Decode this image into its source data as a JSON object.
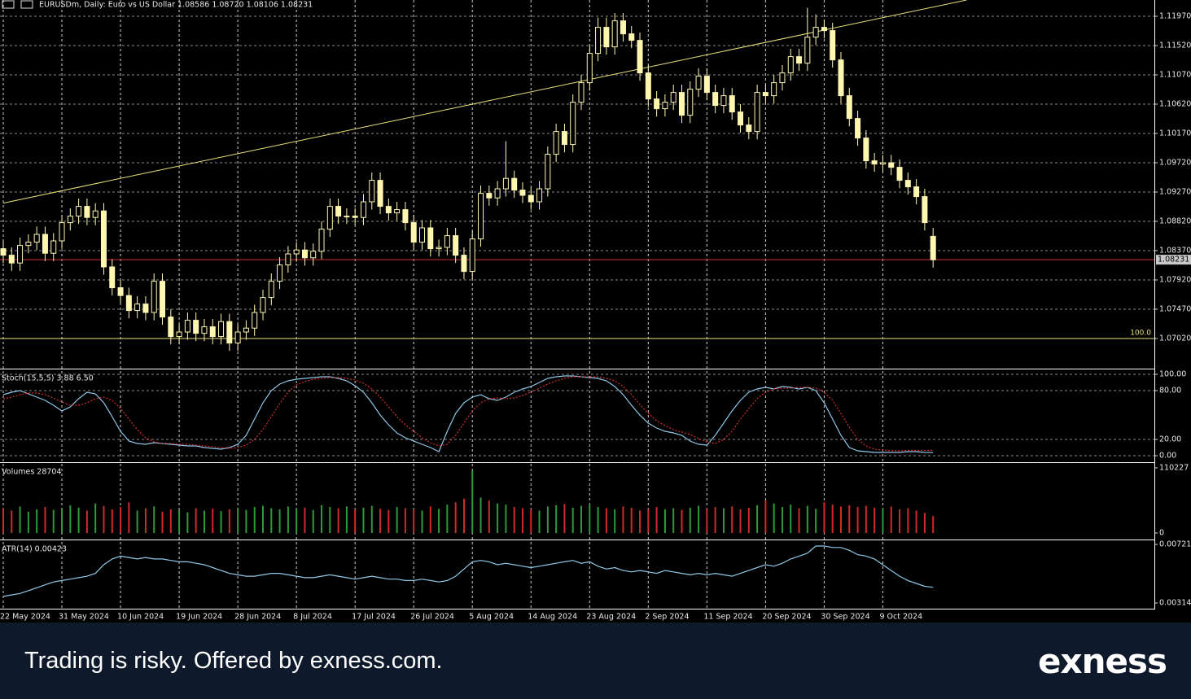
{
  "chart_data": [
    {
      "type": "candlestick",
      "title": "EURUSDm, Daily: Euro vs US Dollar 1.08586 1.08720 1.08106 1.08231",
      "categories": [
        "22 May 2024",
        null,
        null,
        null,
        null,
        null,
        null,
        "31 May 2024",
        null,
        null,
        null,
        null,
        null,
        null,
        "10 Jun 2024",
        null,
        null,
        null,
        null,
        null,
        null,
        "19 Jun 2024",
        null,
        null,
        null,
        null,
        null,
        null,
        "28 Jun 2024",
        null,
        null,
        null,
        null,
        null,
        null,
        "8 Jul 2024",
        null,
        null,
        null,
        null,
        null,
        null,
        "17 Jul 2024",
        null,
        null,
        null,
        null,
        null,
        null,
        "26 Jul 2024",
        null,
        null,
        null,
        null,
        null,
        null,
        "5 Aug 2024",
        null,
        null,
        null,
        null,
        null,
        null,
        "14 Aug 2024",
        null,
        null,
        null,
        null,
        null,
        null,
        "23 Aug 2024",
        null,
        null,
        null,
        null,
        null,
        null,
        "2 Sep 2024",
        null,
        null,
        null,
        null,
        null,
        null,
        "11 Sep 2024",
        null,
        null,
        null,
        null,
        null,
        null,
        "20 Sep 2024",
        null,
        null,
        null,
        null,
        null,
        null,
        "30 Sep 2024",
        null,
        null,
        null,
        null,
        null,
        null,
        "9 Oct 2024",
        null,
        null,
        null,
        null,
        null,
        null
      ],
      "open": [
        1.084,
        1.083,
        1.0818,
        1.0845,
        1.085,
        1.0862,
        1.0833,
        1.0852,
        1.088,
        1.089,
        1.0905,
        1.0888,
        1.0898,
        1.0812,
        1.078,
        1.0768,
        1.0745,
        1.0755,
        1.0742,
        1.079,
        1.0735,
        1.0705,
        1.0712,
        1.073,
        1.071,
        1.072,
        1.0705,
        1.0728,
        1.0695,
        1.0712,
        1.0718,
        1.0742,
        1.0765,
        1.079,
        1.0815,
        1.0832,
        1.0838,
        1.0826,
        1.0836,
        1.087,
        1.0905,
        1.089,
        1.089,
        1.0888,
        1.0912,
        1.0945,
        1.0905,
        1.0895,
        1.09,
        1.088,
        1.085,
        1.0872,
        1.084,
        1.0842,
        1.086,
        1.083,
        1.0805,
        1.0855,
        1.0925,
        1.0918,
        1.0932,
        1.0948,
        1.093,
        1.0922,
        1.0912,
        1.0932,
        1.0985,
        1.102,
        1.1,
        1.1065,
        1.1095,
        1.114,
        1.118,
        1.115,
        1.119,
        1.117,
        1.116,
        1.111,
        1.107,
        1.1055,
        1.1065,
        1.108,
        1.1045,
        1.1085,
        1.1105,
        1.108,
        1.106,
        1.1075,
        1.105,
        1.103,
        1.102,
        1.108,
        1.1075,
        1.1095,
        1.111,
        1.1135,
        1.1125,
        1.1165,
        1.118,
        1.1175,
        1.113,
        1.1075,
        1.104,
        1.101,
        1.0975,
        1.097,
        1.0972,
        1.0965,
        1.0945,
        1.0935,
        1.092,
        1.0859
      ],
      "high": [
        1.0852,
        1.0842,
        1.0857,
        1.0862,
        1.0874,
        1.0874,
        1.0864,
        1.0892,
        1.0902,
        1.0917,
        1.0917,
        1.091,
        1.091,
        1.0824,
        1.0792,
        1.078,
        1.0767,
        1.0767,
        1.0802,
        1.0802,
        1.0747,
        1.0724,
        1.0742,
        1.0742,
        1.0732,
        1.0732,
        1.074,
        1.074,
        1.0724,
        1.073,
        1.0754,
        1.0777,
        1.0802,
        1.0827,
        1.0844,
        1.085,
        1.085,
        1.0848,
        1.0882,
        1.0917,
        1.0917,
        1.0902,
        1.0902,
        1.0924,
        1.0957,
        1.0957,
        1.0917,
        1.0912,
        1.0912,
        1.0892,
        1.0884,
        1.0884,
        1.0854,
        1.0872,
        1.0872,
        1.0842,
        1.0867,
        1.0937,
        1.0937,
        1.0944,
        1.1005,
        1.096,
        1.0942,
        1.0934,
        1.0944,
        1.0997,
        1.1032,
        1.1032,
        1.1077,
        1.1107,
        1.1152,
        1.1195,
        1.1195,
        1.1202,
        1.1202,
        1.1182,
        1.1172,
        1.1122,
        1.1082,
        1.1077,
        1.1092,
        1.1092,
        1.1097,
        1.1117,
        1.1117,
        1.1092,
        1.1087,
        1.1087,
        1.1062,
        1.1042,
        1.1092,
        1.1092,
        1.1107,
        1.1122,
        1.1147,
        1.1147,
        1.121,
        1.12,
        1.1192,
        1.1187,
        1.1142,
        1.1087,
        1.1052,
        1.1022,
        1.0987,
        1.0984,
        1.0984,
        1.0977,
        1.0957,
        1.0947,
        1.0932,
        1.0872
      ],
      "low": [
        1.0818,
        1.0806,
        1.0806,
        1.0833,
        1.0838,
        1.0821,
        1.0821,
        1.084,
        1.0868,
        1.0878,
        1.0876,
        1.0876,
        1.08,
        1.0768,
        1.0756,
        1.0733,
        1.0733,
        1.073,
        1.073,
        1.0723,
        1.0693,
        1.0693,
        1.07,
        1.0698,
        1.0698,
        1.0693,
        1.0693,
        1.0683,
        1.0683,
        1.07,
        1.0706,
        1.073,
        1.0753,
        1.0778,
        1.0803,
        1.082,
        1.0814,
        1.0814,
        1.0824,
        1.0858,
        1.0878,
        1.0878,
        1.0876,
        1.0876,
        1.09,
        1.0893,
        1.0883,
        1.0883,
        1.0868,
        1.0838,
        1.0838,
        1.0828,
        1.0828,
        1.083,
        1.0818,
        1.0793,
        1.0793,
        1.0843,
        1.0906,
        1.0906,
        1.092,
        1.0918,
        1.091,
        1.09,
        1.09,
        1.092,
        1.0973,
        1.0988,
        1.0988,
        1.1053,
        1.1083,
        1.1128,
        1.1138,
        1.1138,
        1.1158,
        1.1148,
        1.1098,
        1.1058,
        1.1043,
        1.1043,
        1.1053,
        1.1033,
        1.1033,
        1.1073,
        1.1068,
        1.1048,
        1.1048,
        1.1038,
        1.1018,
        1.1008,
        1.1008,
        1.1063,
        1.1063,
        1.1083,
        1.1098,
        1.1113,
        1.1113,
        1.1153,
        1.1163,
        1.1118,
        1.1063,
        1.1028,
        1.0998,
        1.0963,
        1.0958,
        1.0958,
        1.0953,
        1.0933,
        1.0923,
        1.0908,
        1.0868,
        1.0811
      ],
      "close": [
        1.083,
        1.0818,
        1.0845,
        1.085,
        1.0862,
        1.0833,
        1.0852,
        1.088,
        1.089,
        1.0905,
        1.0888,
        1.0898,
        1.0812,
        1.078,
        1.0768,
        1.0745,
        1.0755,
        1.0742,
        1.079,
        1.0735,
        1.0705,
        1.0712,
        1.073,
        1.071,
        1.072,
        1.0705,
        1.0728,
        1.0695,
        1.0712,
        1.0718,
        1.0742,
        1.0765,
        1.079,
        1.0815,
        1.0832,
        1.0838,
        1.0826,
        1.0836,
        1.087,
        1.0905,
        1.089,
        1.089,
        1.0888,
        1.0912,
        1.0945,
        1.0905,
        1.0895,
        1.09,
        1.088,
        1.085,
        1.0872,
        1.084,
        1.0842,
        1.086,
        1.083,
        1.0805,
        1.0855,
        1.0925,
        1.0918,
        1.0932,
        1.0948,
        1.093,
        1.0922,
        1.0912,
        1.0932,
        1.0985,
        1.102,
        1.1,
        1.1065,
        1.1095,
        1.114,
        1.118,
        1.115,
        1.119,
        1.117,
        1.116,
        1.111,
        1.107,
        1.1055,
        1.1065,
        1.108,
        1.1045,
        1.1085,
        1.1105,
        1.108,
        1.106,
        1.1075,
        1.105,
        1.103,
        1.102,
        1.108,
        1.1075,
        1.1095,
        1.111,
        1.1135,
        1.1125,
        1.1165,
        1.118,
        1.1175,
        1.113,
        1.1075,
        1.104,
        1.101,
        1.0975,
        1.097,
        1.0972,
        1.0965,
        1.0945,
        1.0935,
        1.092,
        1.088,
        1.0823
      ],
      "color": "#fff7b0",
      "ylim": [
        1.0657,
        1.1222
      ],
      "yticks": [
        {
          "value": 1.1197,
          "label": "1.11970"
        },
        {
          "value": 1.1152,
          "label": "1.11520"
        },
        {
          "value": 1.1107,
          "label": "1.11070"
        },
        {
          "value": 1.1062,
          "label": "1.10620"
        },
        {
          "value": 1.1017,
          "label": "1.10170"
        },
        {
          "value": 1.0972,
          "label": "1.09720"
        },
        {
          "value": 1.0927,
          "label": "1.09270"
        },
        {
          "value": 1.0882,
          "label": "1.08820"
        },
        {
          "value": 1.0837,
          "label": "1.08370"
        },
        {
          "value": 1.0792,
          "label": "1.07920"
        },
        {
          "value": 1.0747,
          "label": "1.07470"
        },
        {
          "value": 1.0702,
          "label": "1.07020"
        }
      ],
      "grid": true,
      "price_tag": {
        "value": 1.08231,
        "label": "1.08231",
        "color": "#d0303a"
      },
      "level": {
        "price": 1.0702,
        "text": "100.0",
        "color": "#e8e27a"
      },
      "trendline": {
        "x": [
          0,
          115
        ],
        "y": [
          1.091,
          1.1222
        ],
        "color": "#e8e27a"
      }
    },
    {
      "type": "line",
      "title": "Stoch(15,5,5) 3.88 6.50",
      "ylim": [
        -7,
        105
      ],
      "yticks": [
        {
          "value": 100,
          "label": "100.00"
        },
        {
          "value": 80,
          "label": "80.00"
        },
        {
          "value": 20,
          "label": "20.00"
        },
        {
          "value": 0,
          "label": "0.00"
        }
      ],
      "grid": true,
      "series": [
        {
          "color": "#8fc7e8",
          "style": "solid",
          "values": [
            75,
            78,
            80,
            76,
            72,
            68,
            62,
            55,
            60,
            70,
            78,
            76,
            65,
            48,
            30,
            18,
            15,
            14,
            16,
            15,
            14,
            13,
            12,
            12,
            10,
            9,
            8,
            10,
            14,
            25,
            45,
            65,
            80,
            88,
            92,
            94,
            95,
            96,
            97,
            97,
            95,
            92,
            86,
            78,
            65,
            50,
            38,
            28,
            22,
            18,
            14,
            10,
            5,
            30,
            52,
            65,
            72,
            75,
            70,
            68,
            72,
            78,
            82,
            85,
            90,
            95,
            97,
            98,
            98,
            97,
            96,
            95,
            92,
            85,
            75,
            62,
            50,
            40,
            34,
            30,
            28,
            25,
            18,
            14,
            13,
            25,
            40,
            55,
            68,
            78,
            82,
            84,
            82,
            85,
            84,
            82,
            84,
            80,
            65,
            45,
            25,
            10,
            6,
            5,
            4,
            4,
            4,
            4,
            5,
            5,
            4,
            3.88
          ]
        },
        {
          "color": "#d03030",
          "style": "dotted",
          "values": [
            70,
            72,
            75,
            77,
            77,
            75,
            71,
            66,
            62,
            62,
            65,
            70,
            72,
            68,
            58,
            45,
            32,
            22,
            17,
            15,
            15,
            14,
            14,
            13,
            12,
            11,
            10,
            9,
            10,
            13,
            20,
            32,
            48,
            64,
            78,
            87,
            91,
            94,
            95,
            96,
            96,
            95,
            93,
            89,
            82,
            72,
            60,
            48,
            38,
            30,
            22,
            16,
            12,
            14,
            25,
            40,
            55,
            65,
            70,
            71,
            70,
            71,
            74,
            78,
            83,
            88,
            92,
            95,
            97,
            97,
            97,
            97,
            95,
            92,
            85,
            75,
            63,
            52,
            43,
            37,
            32,
            29,
            26,
            21,
            17,
            15,
            20,
            30,
            45,
            58,
            70,
            78,
            82,
            83,
            83,
            84,
            84,
            83,
            78,
            68,
            52,
            35,
            20,
            12,
            8,
            7,
            6,
            6,
            6.5,
            6.5,
            6.5,
            6.5
          ]
        }
      ]
    },
    {
      "type": "bar",
      "title": "Volumes 28704",
      "ylim": [
        -9646,
        117117
      ],
      "yticks": [
        110227,
        0
      ],
      "grid": false,
      "up_color": "#2f9a3a",
      "down_color": "#d02a2a",
      "values": [
        42000,
        38000,
        45000,
        36000,
        40000,
        44000,
        39000,
        41000,
        47000,
        43000,
        38000,
        50000,
        46000,
        40000,
        44000,
        52000,
        38000,
        42000,
        45000,
        36000,
        40000,
        39000,
        35000,
        42000,
        38000,
        41000,
        37000,
        40000,
        43000,
        39000,
        44000,
        46000,
        42000,
        40000,
        45000,
        41000,
        43000,
        39000,
        47000,
        44000,
        42000,
        45000,
        40000,
        43000,
        46000,
        41000,
        39000,
        44000,
        42000,
        40000,
        38000,
        45000,
        41000,
        48000,
        52000,
        58000,
        106000,
        60000,
        55000,
        50000,
        48000,
        44000,
        42000,
        40000,
        38000,
        45000,
        47000,
        49000,
        43000,
        46000,
        48000,
        44000,
        42000,
        40000,
        45000,
        43000,
        38000,
        41000,
        44000,
        40000,
        42000,
        39000,
        43000,
        46000,
        41000,
        44000,
        42000,
        45000,
        40000,
        43000,
        47000,
        55000,
        50000,
        44000,
        48000,
        42000,
        46000,
        41000,
        52000,
        48000,
        45000,
        47000,
        44000,
        46000,
        43000,
        42000,
        45000,
        40000,
        42000,
        38000,
        34000,
        28704
      ]
    },
    {
      "type": "line",
      "title": "ATR(14) 0.00423",
      "ylim": [
        0.0028,
        0.00744
      ],
      "yticks": [
        0.00721,
        0.00314
      ],
      "grid": false,
      "series": [
        {
          "color": "#8fc7e8",
          "style": "solid",
          "values": [
            0.0036,
            0.0037,
            0.0038,
            0.004,
            0.0042,
            0.0044,
            0.0046,
            0.0047,
            0.0048,
            0.0049,
            0.005,
            0.0052,
            0.0058,
            0.0062,
            0.0064,
            0.0063,
            0.0062,
            0.0063,
            0.0062,
            0.0062,
            0.0061,
            0.006,
            0.006,
            0.0059,
            0.0058,
            0.0056,
            0.0054,
            0.0052,
            0.0051,
            0.005,
            0.005,
            0.0051,
            0.0052,
            0.0052,
            0.0051,
            0.005,
            0.0049,
            0.0049,
            0.005,
            0.0051,
            0.005,
            0.0049,
            0.0048,
            0.0049,
            0.005,
            0.0049,
            0.0048,
            0.0048,
            0.0047,
            0.0047,
            0.0048,
            0.0047,
            0.0046,
            0.0047,
            0.005,
            0.0055,
            0.006,
            0.0061,
            0.006,
            0.0058,
            0.0059,
            0.0058,
            0.0057,
            0.0056,
            0.0057,
            0.0058,
            0.0059,
            0.006,
            0.0061,
            0.0059,
            0.006,
            0.0057,
            0.0055,
            0.0056,
            0.0054,
            0.0053,
            0.0054,
            0.0053,
            0.0052,
            0.0054,
            0.0053,
            0.0052,
            0.0051,
            0.0052,
            0.0051,
            0.0052,
            0.0051,
            0.005,
            0.0052,
            0.0054,
            0.0056,
            0.0058,
            0.0057,
            0.0059,
            0.0062,
            0.0064,
            0.0066,
            0.0071,
            0.0071,
            0.007,
            0.007,
            0.0068,
            0.0065,
            0.0064,
            0.0062,
            0.0058,
            0.0054,
            0.005,
            0.0047,
            0.0045,
            0.0043,
            0.00423
          ]
        }
      ]
    }
  ],
  "footer": {
    "text": "Trading is risky. Offered by exness.com.",
    "logo": "exness"
  }
}
